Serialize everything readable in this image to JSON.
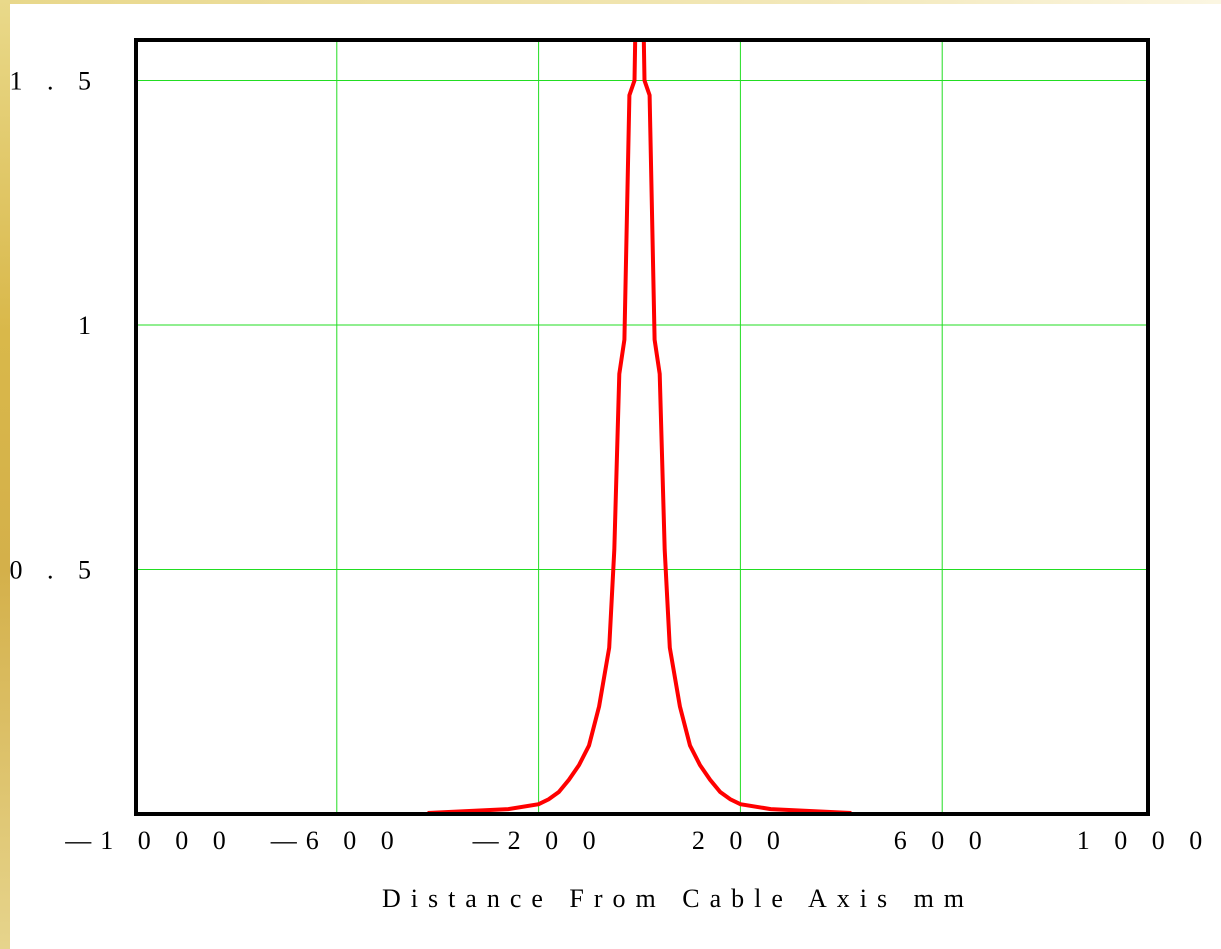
{
  "colors": {
    "series": "#ff0000",
    "grid": "#22dd22",
    "frame": "#000000",
    "accent_border": "#d9b84a"
  },
  "chart_data": {
    "type": "line",
    "title": "",
    "xlabel": "Distance From Cable Axis mm",
    "ylabel": "",
    "xlim": [
      -1000,
      1000
    ],
    "ylim": [
      0,
      1.6
    ],
    "grid": true,
    "x_ticks": [
      -1000,
      -600,
      -200,
      200,
      600,
      1000
    ],
    "x_tick_labels": [
      "—1 0 0 0",
      "—6 0 0",
      "—2 0 0",
      "2 0 0",
      "6 0 0",
      "1 0 0 0"
    ],
    "y_ticks": [
      0.5,
      1,
      1.5
    ],
    "y_tick_labels": [
      "0 . 5",
      "1",
      "1 . 5"
    ],
    "series": [
      {
        "x": [
          -420,
          -260,
          -200,
          -180,
          -160,
          -140,
          -120,
          -100,
          -80,
          -60,
          -50,
          -40,
          -30,
          -20,
          -10,
          -5,
          0,
          5,
          10,
          20,
          30,
          40,
          50,
          60,
          80,
          100,
          120,
          140,
          160,
          180,
          200,
          260,
          420
        ],
        "y": [
          0.002,
          0.01,
          0.02,
          0.03,
          0.045,
          0.07,
          0.1,
          0.14,
          0.22,
          0.34,
          0.54,
          0.9,
          0.97,
          1.47,
          1.5,
          1.8,
          1.8,
          1.8,
          1.5,
          1.47,
          0.97,
          0.9,
          0.54,
          0.34,
          0.22,
          0.14,
          0.1,
          0.07,
          0.045,
          0.03,
          0.02,
          0.01,
          0.002
        ]
      }
    ]
  }
}
